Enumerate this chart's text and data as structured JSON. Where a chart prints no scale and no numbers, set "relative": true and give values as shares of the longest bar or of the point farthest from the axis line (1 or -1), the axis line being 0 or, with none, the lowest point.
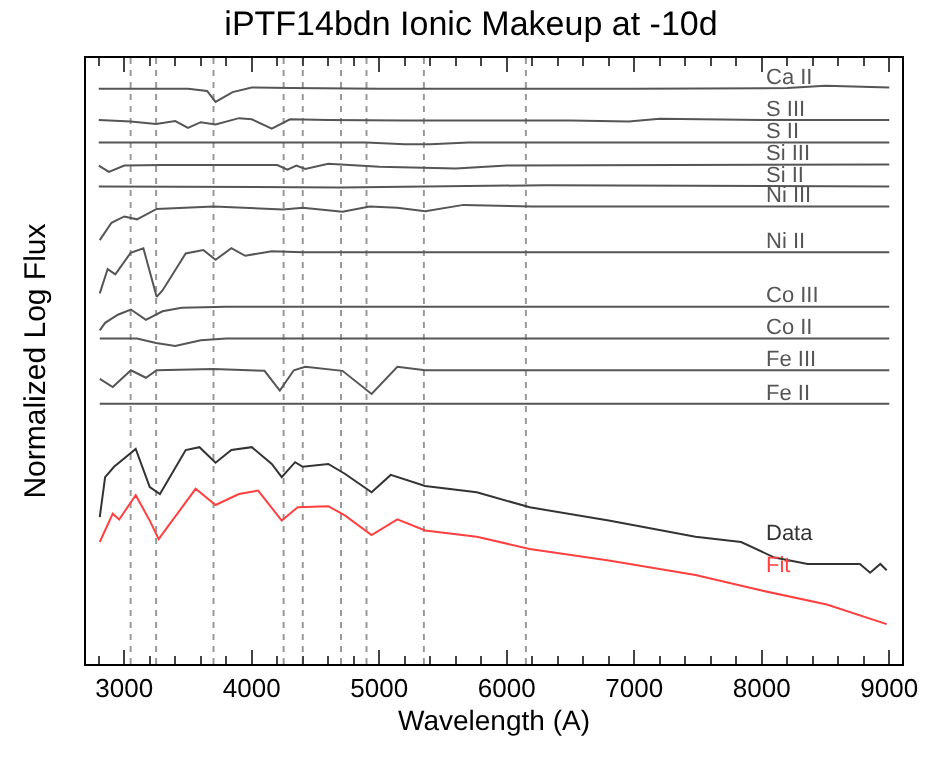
{
  "chart_data": {
    "type": "line",
    "relative": true,
    "title": "iPTF14bdn Ionic Makeup at -10d",
    "xlabel": "Wavelength (A)",
    "ylabel": "Normalized Log Flux",
    "xlim": [
      2700,
      9100
    ],
    "xticks": [
      3000,
      4000,
      5000,
      6000,
      7000,
      8000,
      9000
    ],
    "grid": false,
    "legend": false,
    "marker": "none",
    "line_style": "solid",
    "tick_labels": "x",
    "series": [
      {
        "name": "Ca II",
        "color": "#555555",
        "x": [
          2800,
          3500,
          3650,
          3716,
          3850,
          4000,
          4300,
          5000,
          7000,
          8200,
          8500,
          9000
        ],
        "values": [
          0.995,
          0.995,
          0.991,
          0.972,
          0.989,
          0.997,
          0.996,
          0.995,
          0.995,
          0.996,
          1.0,
          0.997
        ]
      },
      {
        "name": "S III",
        "color": "#555555",
        "x": [
          2800,
          3050,
          3250,
          3400,
          3500,
          3600,
          3716,
          3900,
          4000,
          4157,
          4300,
          4600,
          5200,
          6500,
          6957,
          7200,
          8000,
          9000
        ],
        "values": [
          0.941,
          0.938,
          0.934,
          0.939,
          0.927,
          0.937,
          0.933,
          0.944,
          0.942,
          0.926,
          0.942,
          0.941,
          0.94,
          0.94,
          0.938,
          0.943,
          0.941,
          0.941
        ]
      },
      {
        "name": "S II",
        "color": "#555555",
        "x": [
          2800,
          4900,
          5200,
          5400,
          5700,
          9000
        ],
        "values": [
          0.902,
          0.902,
          0.899,
          0.899,
          0.902,
          0.902
        ]
      },
      {
        "name": "Si III",
        "color": "#555555",
        "x": [
          2800,
          2880,
          3000,
          3300,
          4200,
          4280,
          4350,
          4420,
          4600,
          5000,
          5600,
          6000,
          9000
        ],
        "values": [
          0.862,
          0.851,
          0.862,
          0.863,
          0.863,
          0.855,
          0.862,
          0.856,
          0.865,
          0.86,
          0.857,
          0.862,
          0.864
        ]
      },
      {
        "name": "Si II",
        "color": "#555555",
        "x": [
          2800,
          4700,
          6300,
          9000
        ],
        "values": [
          0.826,
          0.824,
          0.828,
          0.826
        ]
      },
      {
        "name": "Ni III",
        "color": "#555555",
        "x": [
          2808,
          2900,
          3000,
          3100,
          3254,
          3700,
          4245,
          4400,
          4712,
          4925,
          5142,
          5360,
          5661,
          6200,
          9000
        ],
        "values": [
          0.733,
          0.763,
          0.774,
          0.769,
          0.787,
          0.791,
          0.786,
          0.789,
          0.782,
          0.791,
          0.789,
          0.783,
          0.794,
          0.791,
          0.791
        ]
      },
      {
        "name": "Ni II",
        "color": "#555555",
        "x": [
          2808,
          2870,
          2930,
          3050,
          3150,
          3254,
          3300,
          3482,
          3620,
          3716,
          3840,
          3949,
          4157,
          4400,
          9000
        ],
        "values": [
          0.641,
          0.683,
          0.674,
          0.711,
          0.719,
          0.635,
          0.646,
          0.71,
          0.716,
          0.699,
          0.719,
          0.706,
          0.714,
          0.712,
          0.712
        ]
      },
      {
        "name": "Co III",
        "color": "#555555",
        "x": [
          2808,
          2850,
          2950,
          3052,
          3170,
          3300,
          3450,
          3800,
          9000
        ],
        "values": [
          0.577,
          0.59,
          0.604,
          0.613,
          0.595,
          0.61,
          0.616,
          0.618,
          0.618
        ]
      },
      {
        "name": "Co II",
        "color": "#555555",
        "x": [
          2808,
          3100,
          3250,
          3400,
          3600,
          3800,
          9000
        ],
        "values": [
          0.563,
          0.563,
          0.555,
          0.55,
          0.56,
          0.563,
          0.563
        ]
      },
      {
        "name": "Fe III",
        "color": "#555555",
        "x": [
          2808,
          2910,
          3052,
          3170,
          3254,
          3700,
          4100,
          4220,
          4330,
          4420,
          4712,
          4940,
          5142,
          5360,
          9000
        ],
        "values": [
          0.493,
          0.479,
          0.508,
          0.495,
          0.508,
          0.51,
          0.507,
          0.473,
          0.508,
          0.514,
          0.507,
          0.467,
          0.514,
          0.508,
          0.508
        ]
      },
      {
        "name": "Fe II",
        "color": "#555555",
        "x": [
          2808,
          9000
        ],
        "values": [
          0.45,
          0.45
        ]
      },
      {
        "name": "Data",
        "color": "#333333",
        "x": [
          2808,
          2850,
          2920,
          3090,
          3200,
          3280,
          3482,
          3590,
          3716,
          3840,
          4000,
          4157,
          4235,
          4340,
          4400,
          4600,
          4730,
          4940,
          5090,
          5360,
          5765,
          6180,
          6800,
          7480,
          7838,
          8100,
          8360,
          8770,
          8850,
          8930,
          8980
        ],
        "values": [
          0.254,
          0.323,
          0.341,
          0.372,
          0.306,
          0.294,
          0.37,
          0.375,
          0.348,
          0.37,
          0.375,
          0.346,
          0.323,
          0.349,
          0.341,
          0.346,
          0.329,
          0.297,
          0.327,
          0.308,
          0.297,
          0.271,
          0.248,
          0.22,
          0.211,
          0.184,
          0.173,
          0.173,
          0.158,
          0.173,
          0.162
        ]
      },
      {
        "name": "Fit",
        "color": "#ff4040",
        "x": [
          2808,
          2910,
          2960,
          3090,
          3200,
          3270,
          3340,
          3560,
          3716,
          3900,
          4050,
          4235,
          4360,
          4600,
          4730,
          4940,
          5142,
          5360,
          5765,
          6180,
          6800,
          7480,
          8000,
          8510,
          8980
        ],
        "values": [
          0.211,
          0.26,
          0.25,
          0.292,
          0.248,
          0.216,
          0.237,
          0.303,
          0.275,
          0.294,
          0.3,
          0.248,
          0.271,
          0.273,
          0.257,
          0.223,
          0.25,
          0.231,
          0.22,
          0.199,
          0.179,
          0.154,
          0.127,
          0.103,
          0.069
        ]
      }
    ],
    "ref_lines": [
      {
        "axis": "x",
        "value": 3050,
        "color": "#999999",
        "line_style": "dotted"
      },
      {
        "axis": "x",
        "value": 3250,
        "color": "#999999",
        "line_style": "dotted"
      },
      {
        "axis": "x",
        "value": 3700,
        "color": "#999999",
        "line_style": "dotted"
      },
      {
        "axis": "x",
        "value": 4250,
        "color": "#999999",
        "line_style": "dotted"
      },
      {
        "axis": "x",
        "value": 4400,
        "color": "#999999",
        "line_style": "dotted"
      },
      {
        "axis": "x",
        "value": 4700,
        "color": "#999999",
        "line_style": "dotted"
      },
      {
        "axis": "x",
        "value": 4900,
        "color": "#999999",
        "line_style": "dotted"
      },
      {
        "axis": "x",
        "value": 5350,
        "color": "#999999",
        "line_style": "dotted"
      },
      {
        "axis": "x",
        "value": 6150,
        "color": "#999999",
        "line_style": "dotted"
      }
    ]
  }
}
